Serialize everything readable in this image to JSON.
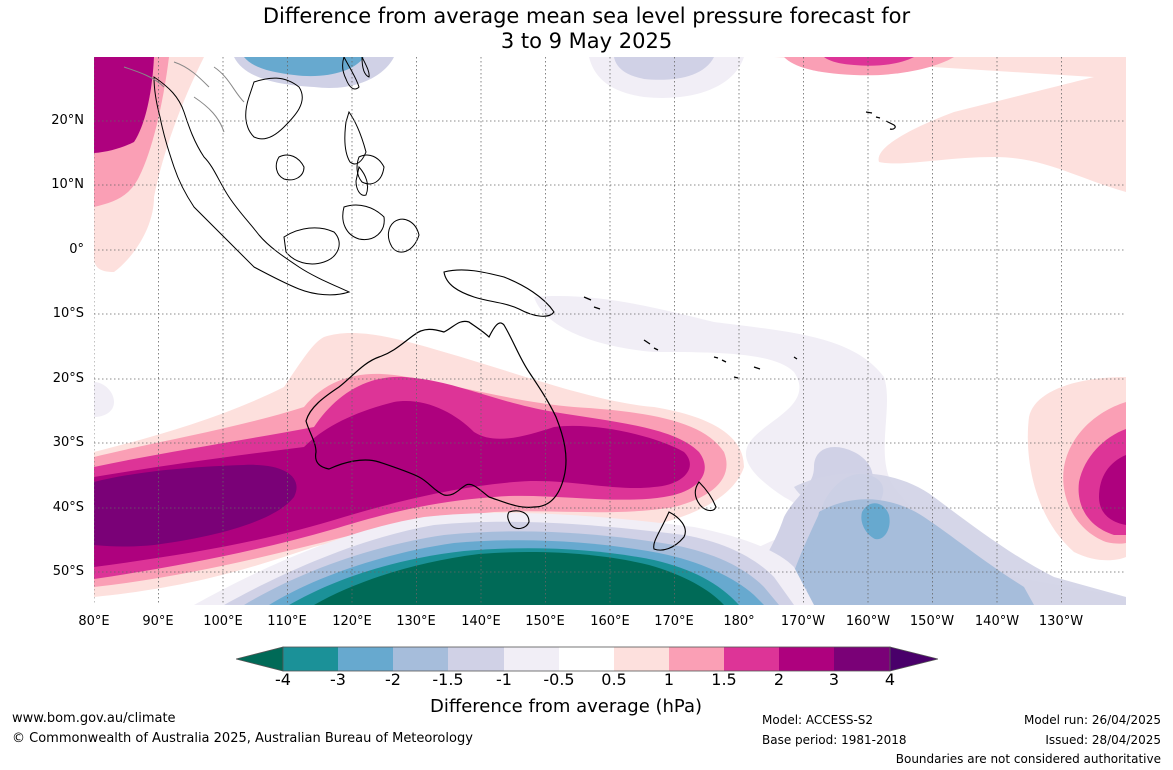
{
  "header": {
    "title_line1": "Difference from average mean sea level pressure forecast for",
    "title_line2": "3 to 9 May 2025"
  },
  "map": {
    "latitude_labels": [
      "20°N",
      "10°N",
      "0°",
      "10°S",
      "20°S",
      "30°S",
      "40°S",
      "50°S"
    ],
    "longitude_labels": [
      "80°E",
      "90°E",
      "100°E",
      "110°E",
      "120°E",
      "130°E",
      "140°E",
      "150°E",
      "160°E",
      "170°E",
      "180°",
      "170°W",
      "160°W",
      "150°W",
      "140°W",
      "130°W"
    ],
    "gridlines": "dotted"
  },
  "colorbar": {
    "ticks": [
      "-4",
      "-3",
      "-2",
      "-1.5",
      "-1",
      "-0.5",
      "0.5",
      "1",
      "1.5",
      "2",
      "3",
      "4"
    ],
    "label": "Difference from average (hPa)",
    "colors": {
      "below_-4": "#006a57",
      "-4_to_-3": "#1b9198",
      "-3_to_-2": "#67a9cf",
      "-2_to_-1.5": "#a6bddb",
      "-1.5_to_-1": "#d0d1e6",
      "-1_to_-0.5": "#f1eef6",
      "-0.5_to_0.5": "#ffffff",
      "0.5_to_1": "#fde0dd",
      "1_to_1.5": "#fa9fb5",
      "1.5_to_2": "#dd3497",
      "2_to_3": "#ae017e",
      "3_to_4": "#7a0177",
      "above_4": "#49006a"
    }
  },
  "footer": {
    "website": "www.bom.gov.au/climate",
    "copyright": "© Commonwealth of Australia 2025, Australian Bureau of Meteorology",
    "model": "Model: ACCESS-S2",
    "base_period": "Base period: 1981-2018",
    "model_run": "Model run: 26/04/2025",
    "issued": "Issued: 28/04/2025",
    "disclaimer": "Boundaries are not considered authoritative"
  }
}
